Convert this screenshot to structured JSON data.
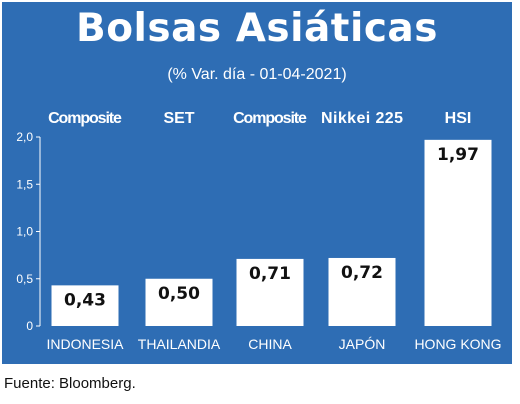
{
  "title": "Bolsas Asiáticas",
  "subtitle": "(% Var. día - 01-04-2021)",
  "source": "Fuente: Bloomberg.",
  "colors": {
    "background": "#2e6db4",
    "bar": "#ffffff",
    "text": "#ffffff",
    "value_text": "#111111"
  },
  "chart_data": {
    "type": "bar",
    "categories": [
      "INDONESIA",
      "THAILANDIA",
      "CHINA",
      "JAPÓN",
      "HONG KONG"
    ],
    "index_names": [
      "Composite",
      "SET",
      "Composite",
      "Nikkei 225",
      "HSI"
    ],
    "values": [
      0.43,
      0.5,
      0.71,
      0.72,
      1.97
    ],
    "value_labels": [
      "0,43",
      "0,50",
      "0,71",
      "0,72",
      "1,97"
    ],
    "ylim": [
      0,
      2.0
    ],
    "yticks": [
      0,
      0.5,
      1.0,
      1.5,
      2.0
    ],
    "ytick_labels": [
      "0",
      "0,5",
      "1,0",
      "1,5",
      "2,0"
    ],
    "grid": false
  }
}
